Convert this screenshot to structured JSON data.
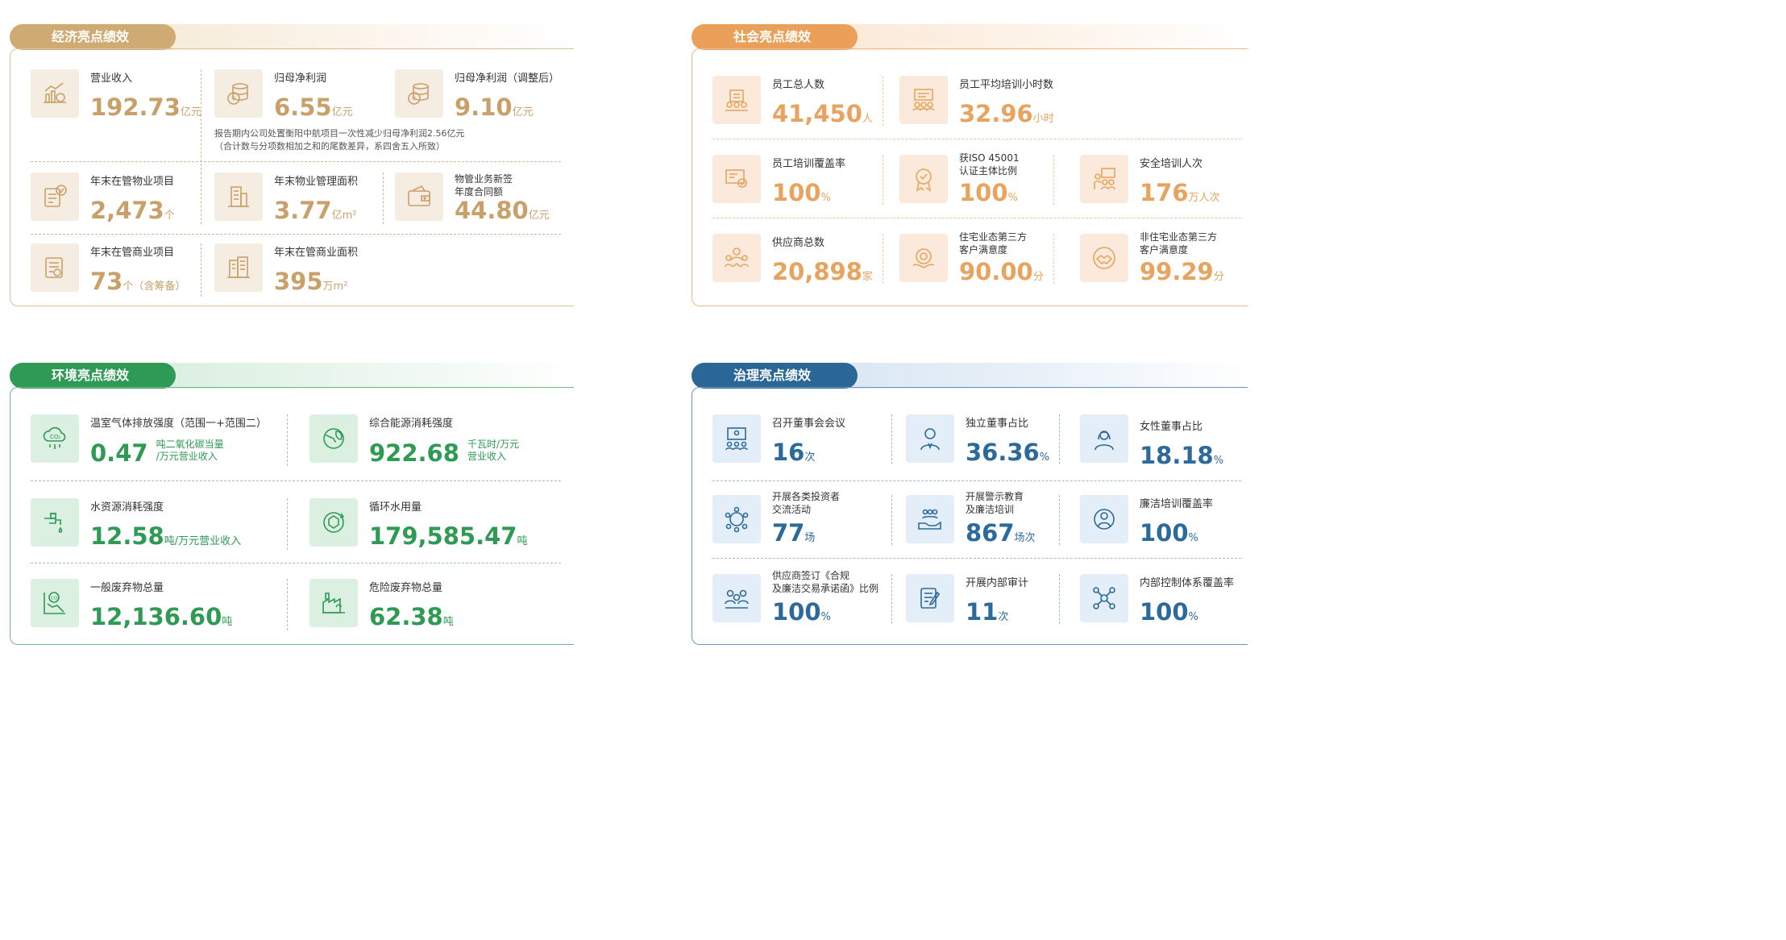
{
  "colors": {
    "economic": "#c9a06a",
    "social": "#e8a35e",
    "environment": "#2e9a54",
    "governance": "#2c6a9c"
  },
  "economic": {
    "title": "经济亮点绩效",
    "items": [
      {
        "label": "营业收入",
        "value": "192.73",
        "unit": "亿元",
        "icon": "chart-coin-icon"
      },
      {
        "label": "归母净利润",
        "value": "6.55",
        "unit": "亿元",
        "icon": "coin-stack-icon"
      },
      {
        "label": "归母净利润（调整后）",
        "value": "9.10",
        "unit": "亿元",
        "icon": "coin-stack-icon"
      },
      {
        "label": "年末在管物业项目",
        "value": "2,473",
        "unit": "个",
        "icon": "document-check-icon"
      },
      {
        "label": "年末物业管理面积",
        "value": "3.77",
        "unit": "亿m²",
        "icon": "building-icon"
      },
      {
        "label": "物管业务新签年度合同额",
        "label_line1": "物管业务新签",
        "label_line2": "年度合同额",
        "value": "44.80",
        "unit": "亿元",
        "icon": "wallet-icon"
      },
      {
        "label": "年末在管商业项目",
        "value": "73",
        "unit": "个（含筹备）",
        "icon": "contract-icon"
      },
      {
        "label": "年末在管商业面积",
        "value": "395",
        "unit": "万m²",
        "icon": "commercial-building-icon"
      }
    ],
    "note_line1": "报告期内公司处置衡阳中航项目一次性减少归母净利润2.56亿元",
    "note_line2": "（合计数与分项数相加之和的尾数差异，系四舍五入所致）"
  },
  "social": {
    "title": "社会亮点绩效",
    "items": [
      {
        "label": "员工总人数",
        "value": "41,450",
        "unit": "人",
        "icon": "team-building-icon"
      },
      {
        "label": "员工平均培训小时数",
        "value": "32.96",
        "unit": "小时",
        "icon": "training-icon"
      },
      {
        "label": "员工培训覆盖率",
        "value": "100",
        "unit": "%",
        "icon": "screen-training-icon"
      },
      {
        "label_line1": "获ISO 45001",
        "label_line2": "认证主体比例",
        "value": "100",
        "unit": "%",
        "icon": "certificate-badge-icon"
      },
      {
        "label": "安全培训人次",
        "value": "176",
        "unit": "万人次",
        "icon": "safety-training-icon"
      },
      {
        "label": "供应商总数",
        "value": "20,898",
        "unit": "家",
        "icon": "supplier-icon"
      },
      {
        "label_line1": "住宅业态第三方",
        "label_line2": "客户满意度",
        "value": "90.00",
        "unit": "分",
        "icon": "satisfaction-gear-icon"
      },
      {
        "label_line1": "非住宅业态第三方",
        "label_line2": "客户满意度",
        "value": "99.29",
        "unit": "分",
        "icon": "handshake-icon"
      }
    ]
  },
  "environment": {
    "title": "环境亮点绩效",
    "items": [
      {
        "label": "温室气体排放强度（范围一+范围二）",
        "value": "0.47",
        "unit_line1": "吨二氧化碳当量",
        "unit_line2": "/万元营业收入",
        "icon": "co2-cloud-icon"
      },
      {
        "label": "综合能源消耗强度",
        "value": "922.68",
        "unit_line1": "千瓦时/万元",
        "unit_line2": "营业收入",
        "icon": "globe-leaf-icon"
      },
      {
        "label": "水资源消耗强度",
        "value": "12.58",
        "unit": "吨/万元营业收入",
        "icon": "water-tap-icon"
      },
      {
        "label": "循环水用量",
        "value": "179,585.47",
        "unit": "吨",
        "icon": "recycle-water-icon"
      },
      {
        "label": "一般废弃物总量",
        "value": "12,136.60",
        "unit": "吨",
        "icon": "waste-co2-icon"
      },
      {
        "label": "危险废弃物总量",
        "value": "62.38",
        "unit": "吨",
        "icon": "factory-waste-icon"
      }
    ]
  },
  "governance": {
    "title": "治理亮点绩效",
    "items": [
      {
        "label": "召开董事会会议",
        "value": "16",
        "unit": "次",
        "icon": "board-meeting-icon"
      },
      {
        "label": "独立董事占比",
        "value": "36.36",
        "unit": "%",
        "icon": "director-icon"
      },
      {
        "label": "女性董事占比",
        "value": "18.18",
        "unit": "%",
        "icon": "female-director-icon"
      },
      {
        "label_line1": "开展各类投资者",
        "label_line2": "交流活动",
        "value": "77",
        "unit": "场",
        "icon": "investor-meeting-icon"
      },
      {
        "label_line1": "开展警示教育",
        "label_line2": "及廉洁培训",
        "value": "867",
        "unit": "场次",
        "icon": "hand-people-icon"
      },
      {
        "label": "廉洁培训覆盖率",
        "value": "100",
        "unit": "%",
        "icon": "integrity-icon"
      },
      {
        "label_line1": "供应商签订《合规",
        "label_line2": "及廉洁交易承诺函》比例",
        "value": "100",
        "unit": "%",
        "icon": "supplier-agreement-icon"
      },
      {
        "label": "开展内部审计",
        "value": "11",
        "unit": "次",
        "icon": "audit-document-icon"
      },
      {
        "label": "内部控制体系覆盖率",
        "value": "100",
        "unit": "%",
        "icon": "control-network-icon"
      }
    ]
  }
}
